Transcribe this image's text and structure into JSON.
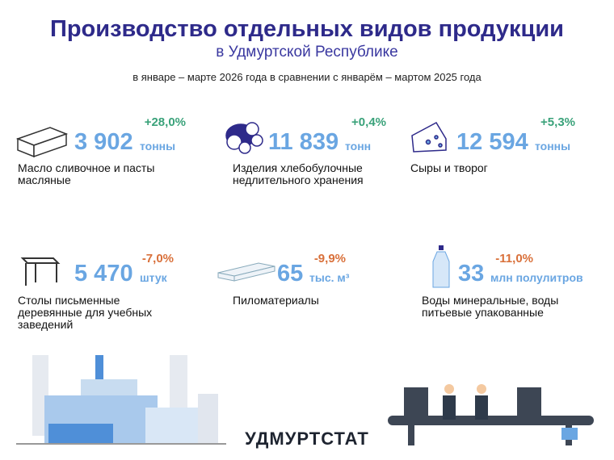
{
  "header": {
    "title": "Производство отдельных видов продукции",
    "subtitle": "в Удмуртской Республике",
    "period": "в январе – марте 2026 года в сравнении с январём – мартом 2025 года"
  },
  "items": [
    {
      "value": "3 902",
      "unit": "тонны",
      "change": "+28,0%",
      "label": "Масло сливочное и пасты масляные"
    },
    {
      "value": "11 839",
      "unit": "тонн",
      "change": "+0,4%",
      "label": "Изделия хлебобулочные недлительного хранения"
    },
    {
      "value": "12 594",
      "unit": "тонны",
      "change": "+5,3%",
      "label": "Сыры и творог"
    },
    {
      "value": "5 470",
      "unit": "штук",
      "change": "-7,0%",
      "label": "Столы письменные деревянные для учебных заведений"
    },
    {
      "value": "65",
      "unit": "тыс. м³",
      "change": "-9,9%",
      "label": "Пиломатериалы"
    },
    {
      "value": "33",
      "unit": "млн полулитров",
      "change": "-11,0%",
      "label": "Воды минеральные, воды питьевые упакованные"
    }
  ],
  "footer": {
    "brand": "УДМУРТСТАТ"
  }
}
